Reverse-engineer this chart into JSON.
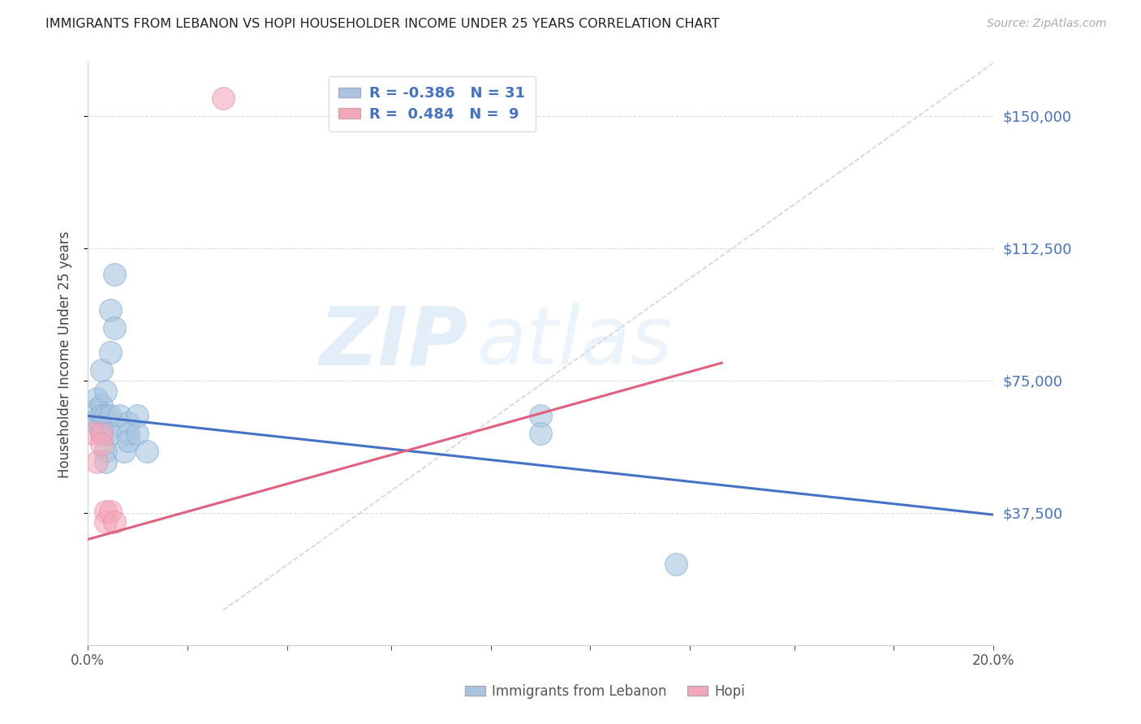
{
  "title": "IMMIGRANTS FROM LEBANON VS HOPI HOUSEHOLDER INCOME UNDER 25 YEARS CORRELATION CHART",
  "source": "Source: ZipAtlas.com",
  "ylabel": "Householder Income Under 25 years",
  "xlim": [
    0.0,
    0.2
  ],
  "ylim": [
    0,
    165000
  ],
  "yticks": [
    37500,
    75000,
    112500,
    150000
  ],
  "ytick_labels": [
    "$37,500",
    "$75,000",
    "$112,500",
    "$150,000"
  ],
  "xticks": [
    0.0,
    0.022,
    0.044,
    0.067,
    0.089,
    0.111,
    0.133,
    0.156,
    0.178,
    0.2
  ],
  "xtick_labels": [
    "0.0%",
    "",
    "",
    "",
    "",
    "",
    "",
    "",
    "",
    "20.0%"
  ],
  "legend_blue_r": "-0.386",
  "legend_blue_n": "31",
  "legend_pink_r": "0.484",
  "legend_pink_n": "9",
  "blue_color": "#a8c4e0",
  "pink_color": "#f4a7b9",
  "blue_line_color": "#4472c4",
  "pink_line_color": "#e06080",
  "dashed_line_color": "#c8c8c8",
  "watermark_zip": "ZIP",
  "watermark_atlas": "atlas",
  "blue_dots": [
    [
      0.002,
      63000
    ],
    [
      0.002,
      67000
    ],
    [
      0.002,
      70000
    ],
    [
      0.002,
      64000
    ],
    [
      0.003,
      78000
    ],
    [
      0.003,
      68000
    ],
    [
      0.003,
      65000
    ],
    [
      0.003,
      62000
    ],
    [
      0.003,
      60000
    ],
    [
      0.004,
      72000
    ],
    [
      0.004,
      65000
    ],
    [
      0.004,
      60000
    ],
    [
      0.004,
      55000
    ],
    [
      0.004,
      52000
    ],
    [
      0.005,
      95000
    ],
    [
      0.005,
      83000
    ],
    [
      0.005,
      65000
    ],
    [
      0.005,
      60000
    ],
    [
      0.006,
      105000
    ],
    [
      0.006,
      90000
    ],
    [
      0.007,
      65000
    ],
    [
      0.008,
      55000
    ],
    [
      0.009,
      63000
    ],
    [
      0.009,
      60000
    ],
    [
      0.009,
      58000
    ],
    [
      0.011,
      65000
    ],
    [
      0.011,
      60000
    ],
    [
      0.013,
      55000
    ],
    [
      0.1,
      65000
    ],
    [
      0.1,
      60000
    ],
    [
      0.13,
      23000
    ]
  ],
  "pink_dots": [
    [
      0.001,
      60000
    ],
    [
      0.002,
      52000
    ],
    [
      0.003,
      60000
    ],
    [
      0.003,
      57000
    ],
    [
      0.004,
      38000
    ],
    [
      0.004,
      35000
    ],
    [
      0.005,
      38000
    ],
    [
      0.006,
      35000
    ],
    [
      0.03,
      155000
    ]
  ],
  "blue_line_x": [
    0.0,
    0.2
  ],
  "blue_line_y": [
    65000,
    37000
  ],
  "pink_line_x": [
    0.0,
    0.14
  ],
  "pink_line_y": [
    30000,
    80000
  ],
  "dashed_line_x": [
    0.03,
    0.2
  ],
  "dashed_line_y": [
    10000,
    165000
  ]
}
